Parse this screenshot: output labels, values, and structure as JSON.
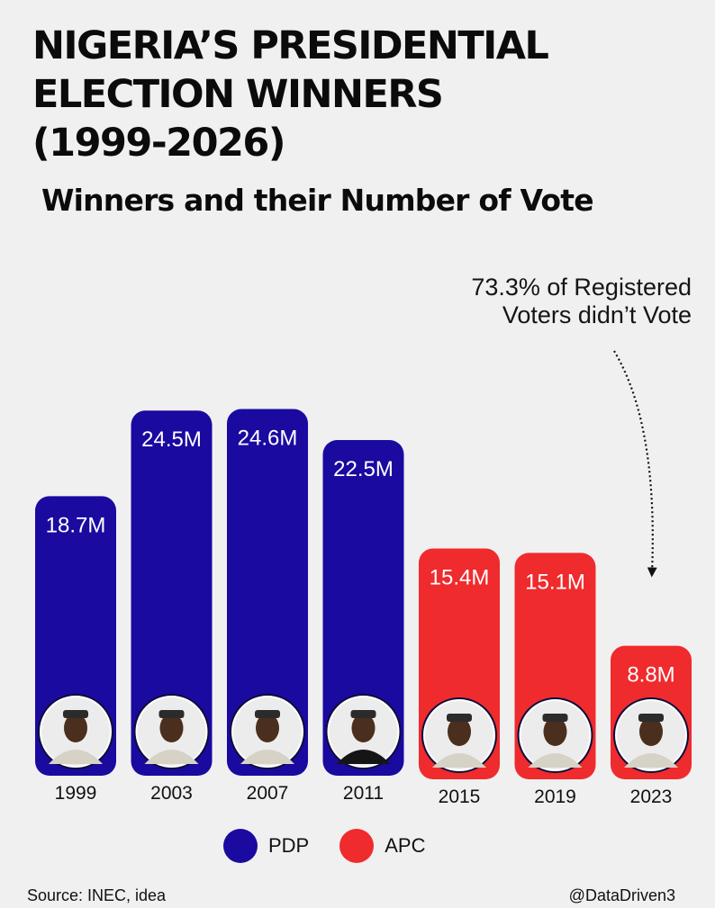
{
  "title": {
    "line1": "NIGERIA’S PRESIDENTIAL",
    "line2": "ELECTION WINNERS",
    "line3": "(1999-2026)"
  },
  "subtitle": "Winners and their Number of Vote",
  "annotation": {
    "line1": "73.3% of Registered",
    "line2": "Voters didn’t Vote"
  },
  "colors": {
    "PDP": "#1a0aa0",
    "APC": "#ef2b2d",
    "background": "#f0f0f0"
  },
  "legend": [
    {
      "label": "PDP",
      "color": "#1a0aa0"
    },
    {
      "label": "APC",
      "color": "#ef2b2d"
    }
  ],
  "source": "Source: INEC, idea",
  "handle": "@DataDriven3",
  "chart_data": {
    "type": "bar",
    "categories": [
      "1999",
      "2003",
      "2007",
      "2011",
      "2015",
      "2019",
      "2023"
    ],
    "values": [
      18.7,
      24.5,
      24.6,
      22.5,
      15.4,
      15.1,
      8.8
    ],
    "value_labels": [
      "18.7M",
      "24.5M",
      "24.6M",
      "22.5M",
      "15.4M",
      "15.1M",
      "8.8M"
    ],
    "party": [
      "PDP",
      "PDP",
      "PDP",
      "PDP",
      "APC",
      "APC",
      "APC"
    ],
    "unit": "M",
    "ylim": [
      0,
      25
    ],
    "grid": false,
    "legend_position": "bottom-center",
    "icons": [
      "winner-portrait-icon",
      "winner-portrait-icon",
      "winner-portrait-icon",
      "winner-portrait-icon",
      "winner-portrait-icon",
      "winner-portrait-icon",
      "winner-portrait-icon"
    ]
  }
}
